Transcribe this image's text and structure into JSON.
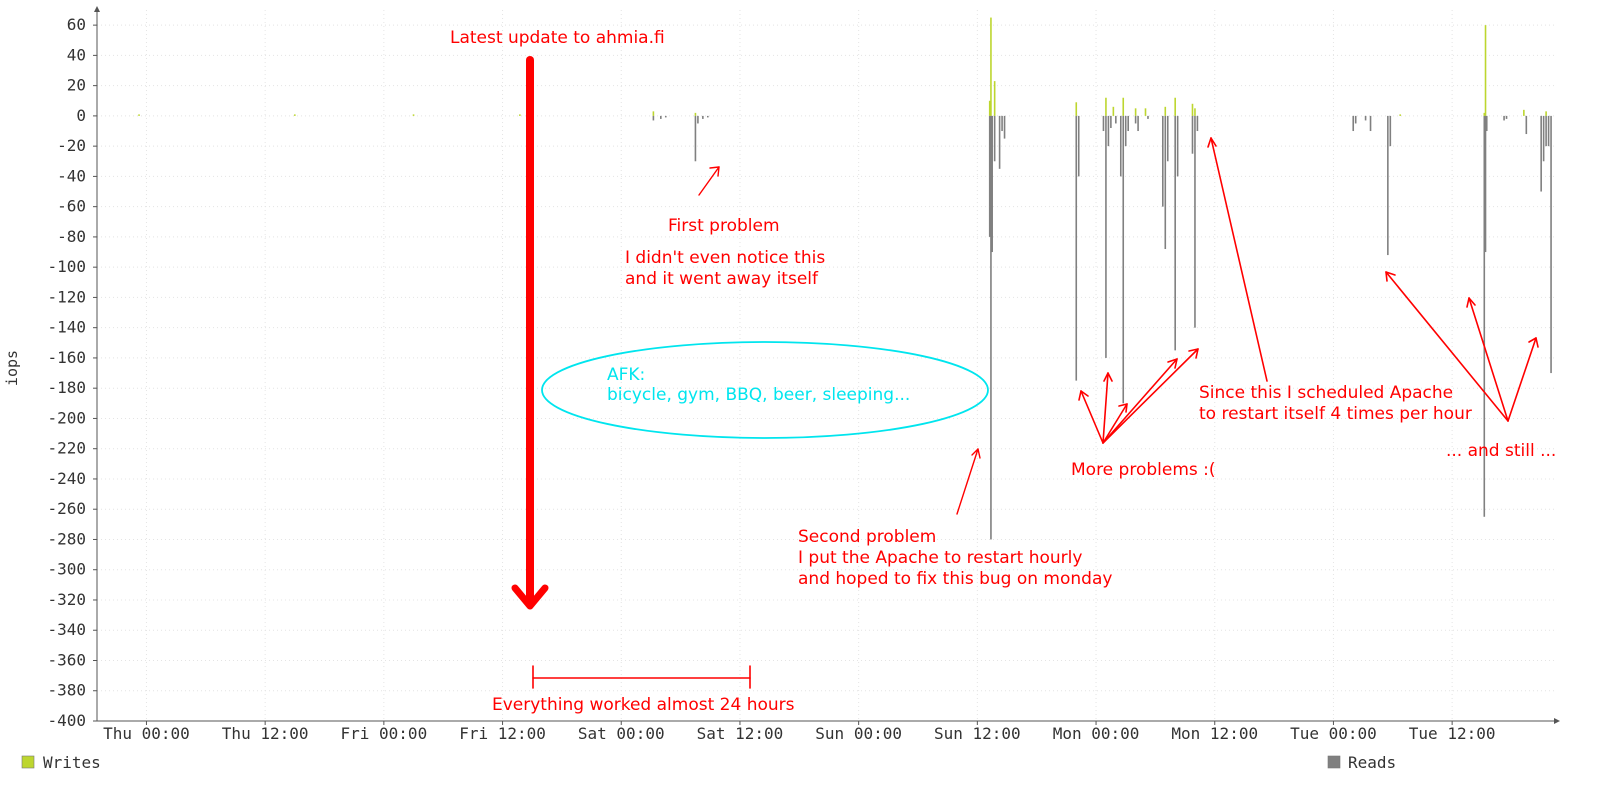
{
  "chart_data": {
    "type": "area",
    "ylabel": "iops",
    "ylim": [
      -400,
      70
    ],
    "yticks": [
      "60",
      "40",
      "20",
      "0",
      "-20",
      "-40",
      "-60",
      "-80",
      "-100",
      "-120",
      "-140",
      "-160",
      "-180",
      "-200",
      "-220",
      "-240",
      "-260",
      "-280",
      "-300",
      "-320",
      "-340",
      "-360",
      "-380",
      "-400"
    ],
    "xlim_hours": [
      -20,
      570
    ],
    "x_unit": "hours since Thu 00:00",
    "xticks": [
      {
        "h": 0,
        "label": "Thu 00:00"
      },
      {
        "h": 48,
        "label": "Thu 12:00"
      },
      {
        "h": 96,
        "label": "Fri 00:00"
      },
      {
        "h": 144,
        "label": "Fri 12:00"
      },
      {
        "h": 192,
        "label": "Sat 00:00"
      },
      {
        "h": 240,
        "label": "Sat 12:00"
      },
      {
        "h": 288,
        "label": "Sun 00:00"
      },
      {
        "h": 336,
        "label": "Sun 12:00"
      },
      {
        "h": 384,
        "label": "Mon 00:00"
      },
      {
        "h": 432,
        "label": "Mon 12:00"
      },
      {
        "h": 480,
        "label": "Tue 00:00"
      },
      {
        "h": 528,
        "label": "Tue 12:00"
      }
    ],
    "grid": true,
    "legend_position": "bottom",
    "series": [
      {
        "name": "Writes",
        "color": "#bdd62f",
        "spikes": [
          [
            -3,
            1
          ],
          [
            60,
            1
          ],
          [
            108,
            1
          ],
          [
            151,
            1
          ],
          [
            205,
            3
          ],
          [
            222,
            2
          ],
          [
            341,
            10
          ],
          [
            341.5,
            65
          ],
          [
            343,
            23
          ],
          [
            376,
            9
          ],
          [
            388,
            12
          ],
          [
            391,
            6
          ],
          [
            395,
            12
          ],
          [
            400,
            5
          ],
          [
            404,
            5
          ],
          [
            412,
            6
          ],
          [
            416,
            12
          ],
          [
            423,
            8
          ],
          [
            424,
            5
          ],
          [
            507,
            1
          ],
          [
            541,
            2
          ],
          [
            541.5,
            60
          ],
          [
            557,
            4
          ],
          [
            566,
            3
          ]
        ]
      },
      {
        "name": "Reads",
        "color": "#808080",
        "spikes": [
          [
            205,
            -3
          ],
          [
            208,
            -2
          ],
          [
            210,
            -1
          ],
          [
            222,
            -30
          ],
          [
            223,
            -5
          ],
          [
            225,
            -2
          ],
          [
            227,
            -1
          ],
          [
            341,
            -80
          ],
          [
            341.5,
            -280
          ],
          [
            342,
            -90
          ],
          [
            343,
            -30
          ],
          [
            345,
            -35
          ],
          [
            346,
            -10
          ],
          [
            347,
            -15
          ],
          [
            376,
            -175
          ],
          [
            377,
            -40
          ],
          [
            387,
            -10
          ],
          [
            388,
            -160
          ],
          [
            389,
            -20
          ],
          [
            390,
            -8
          ],
          [
            392,
            -5
          ],
          [
            394,
            -40
          ],
          [
            395,
            -190
          ],
          [
            396,
            -20
          ],
          [
            397,
            -10
          ],
          [
            400,
            -5
          ],
          [
            401,
            -10
          ],
          [
            405,
            -2
          ],
          [
            411,
            -60
          ],
          [
            412,
            -88
          ],
          [
            413,
            -30
          ],
          [
            416,
            -155
          ],
          [
            417,
            -40
          ],
          [
            423,
            -25
          ],
          [
            424,
            -140
          ],
          [
            425,
            -10
          ],
          [
            495,
            -10
          ],
          [
            493,
            -3
          ],
          [
            488,
            -10
          ],
          [
            489,
            -5
          ],
          [
            502,
            -92
          ],
          [
            503,
            -20
          ],
          [
            541,
            -265
          ],
          [
            541.5,
            -90
          ],
          [
            542,
            -10
          ],
          [
            549,
            -3
          ],
          [
            550,
            -2
          ],
          [
            558,
            -12
          ],
          [
            564,
            -50
          ],
          [
            565,
            -30
          ],
          [
            566,
            -20
          ],
          [
            567,
            -20
          ],
          [
            568,
            -170
          ]
        ]
      }
    ]
  },
  "annotations": {
    "latest_update": "Latest update to ahmia.fi",
    "first_problem": "First problem",
    "didnt_notice_1": "I didn't even notice this",
    "didnt_notice_2": "and it went away itself",
    "afk_1": "AFK:",
    "afk_2": "bicycle, gym, BBQ, beer, sleeping...",
    "second_problem_1": "Second problem",
    "second_problem_2": "I put the Apache to restart hourly",
    "second_problem_3": "and hoped to fix this bug on monday",
    "more_problems": "More problems :(",
    "since_this_1": "Since this I scheduled Apache",
    "since_this_2": "to restart itself 4 times per hour",
    "and_still": "... and still ...",
    "worked_24h": "Everything worked almost 24 hours"
  },
  "colors": {
    "annotation": "#ff0000",
    "afk": "#00e5ee",
    "axis": "#555555",
    "grid": "#e4e4e4"
  }
}
